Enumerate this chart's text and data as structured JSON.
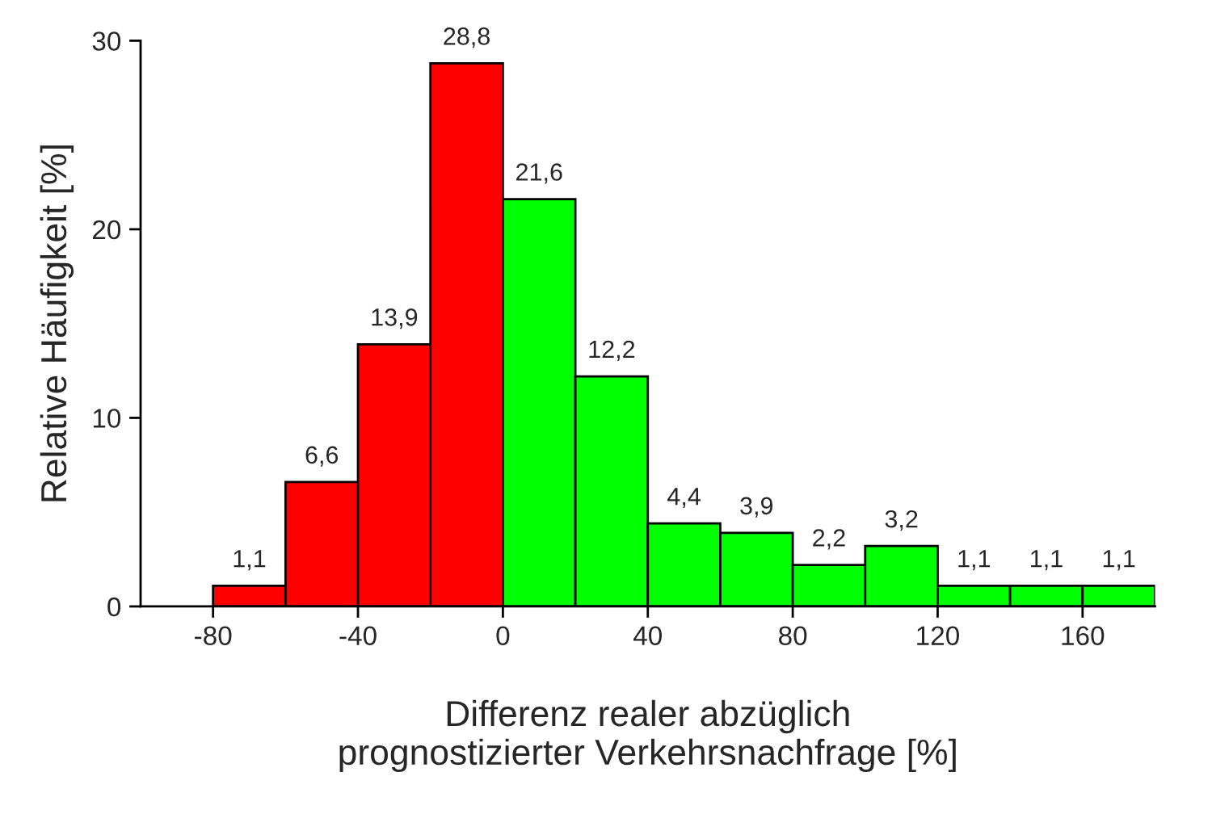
{
  "chart_data": {
    "type": "histogram",
    "xlabel": "Differenz realer abzüglich\nprognostizierter Verkehrsnachfrage [%]",
    "ylabel": "Relative Häufigkeit [%]",
    "bins": [
      -80,
      -60,
      -40,
      -20,
      0,
      20,
      40,
      60,
      80,
      100,
      120,
      140,
      160,
      180
    ],
    "values": [
      1.1,
      6.6,
      13.9,
      28.8,
      21.6,
      12.2,
      4.4,
      3.9,
      2.2,
      3.2,
      1.1,
      1.1,
      1.1
    ],
    "value_labels": [
      "1,1",
      "6,6",
      "13,9",
      "28,8",
      "21,6",
      "12,2",
      "4,4",
      "3,9",
      "2,2",
      "3,2",
      "1,1",
      "1,1",
      "1,1"
    ],
    "colors": [
      "#ff0000",
      "#ff0000",
      "#ff0000",
      "#ff0000",
      "#00ff00",
      "#00ff00",
      "#00ff00",
      "#00ff00",
      "#00ff00",
      "#00ff00",
      "#00ff00",
      "#00ff00",
      "#00ff00"
    ],
    "xlim": [
      -100,
      180
    ],
    "ylim": [
      0,
      30
    ],
    "xticks": [
      -80,
      -40,
      0,
      40,
      80,
      120,
      160
    ],
    "yticks": [
      0,
      10,
      20,
      30
    ],
    "grid": false
  }
}
